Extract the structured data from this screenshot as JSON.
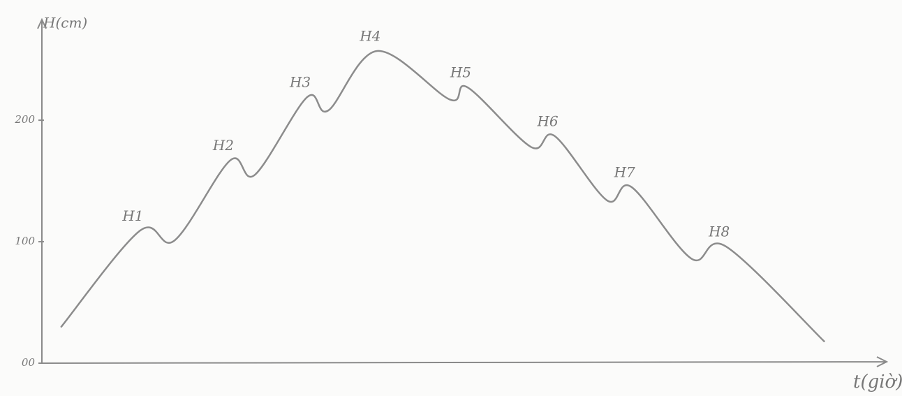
{
  "chart_data": {
    "type": "line",
    "y_label": "H(cm)",
    "x_label": "t(giờ)",
    "x": [
      2.3,
      11.6,
      15.7,
      22.3,
      25.2,
      31.4,
      33.9,
      39.7,
      48.3,
      50.4,
      57.9,
      60.7,
      66.9,
      69.8,
      76.9,
      81,
      92.6
    ],
    "values": [
      30,
      109,
      101,
      167,
      155,
      219,
      208,
      257,
      217,
      227,
      178,
      187,
      134,
      145,
      86,
      96,
      18
    ],
    "point_labels": [
      null,
      "H1",
      null,
      "H2",
      null,
      "H3",
      null,
      "H4",
      null,
      "H5",
      null,
      "H6",
      null,
      "H7",
      null,
      "H8",
      null
    ],
    "color": "#8c8c8c",
    "xlim": [
      0,
      100
    ],
    "ylim": [
      0,
      280
    ],
    "yticks": [
      {
        "value": 0,
        "label": "00"
      },
      100,
      200
    ]
  }
}
